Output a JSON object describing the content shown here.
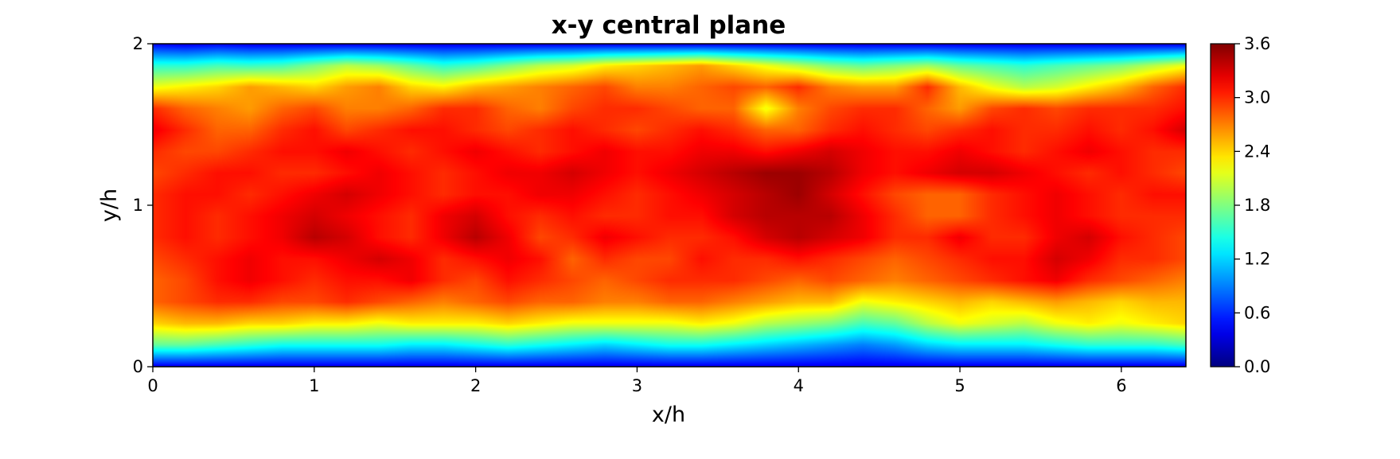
{
  "chart_data": {
    "type": "heatmap",
    "title": "x-y central plane",
    "xlabel": "x/h",
    "ylabel": "y/h",
    "xlim": [
      0,
      6.4
    ],
    "ylim": [
      0,
      2
    ],
    "x_ticks": [
      "0",
      "1",
      "2",
      "3",
      "4",
      "5",
      "6"
    ],
    "y_ticks": [
      "0",
      "1",
      "2"
    ],
    "colorbar": {
      "colormap": "jet",
      "range": [
        0.0,
        3.6
      ],
      "ticks": [
        "0.0",
        "0.6",
        "1.2",
        "1.8",
        "2.4",
        "3.0",
        "3.6"
      ]
    },
    "field_description_note": "",
    "values": [
      [
        0.45,
        0.4,
        0.45,
        0.4,
        0.4,
        0.4,
        0.4,
        0.4,
        0.4,
        0.4,
        0.4,
        0.4,
        0.4,
        0.4,
        0.4,
        0.4,
        0.4,
        0.4,
        0.4,
        0.4,
        0.4,
        0.4,
        0.4,
        0.4,
        0.4,
        0.4,
        0.4,
        0.4,
        0.4,
        0.4,
        0.4,
        0.4,
        0.4
      ],
      [
        1.5,
        1.5,
        1.6,
        1.55,
        1.6,
        1.8,
        2.0,
        1.9,
        1.7,
        1.5,
        1.6,
        1.8,
        2.0,
        2.1,
        2.3,
        2.4,
        2.5,
        2.6,
        2.4,
        2.2,
        2.0,
        1.8,
        1.7,
        1.8,
        1.9,
        1.7,
        1.6,
        1.5,
        1.6,
        1.7,
        1.8,
        2.0,
        2.2
      ],
      [
        2.2,
        2.3,
        2.4,
        2.6,
        2.5,
        2.4,
        2.6,
        2.7,
        2.4,
        2.3,
        2.5,
        2.6,
        2.7,
        2.8,
        2.9,
        2.7,
        2.7,
        2.8,
        2.9,
        2.8,
        3.0,
        2.7,
        2.6,
        2.6,
        3.0,
        2.5,
        2.2,
        2.0,
        2.1,
        2.3,
        2.5,
        2.8,
        3.0
      ],
      [
        3.0,
        2.8,
        2.7,
        2.6,
        2.8,
        2.9,
        2.7,
        2.7,
        2.8,
        3.0,
        3.0,
        2.8,
        2.7,
        2.9,
        3.0,
        3.0,
        2.9,
        2.8,
        2.8,
        2.2,
        2.7,
        2.9,
        3.0,
        3.0,
        2.8,
        2.6,
        2.9,
        3.0,
        2.9,
        3.0,
        3.0,
        3.0,
        3.1
      ],
      [
        3.2,
        3.0,
        2.8,
        2.8,
        3.0,
        3.1,
        2.9,
        3.0,
        3.1,
        3.1,
        3.0,
        2.9,
        3.0,
        3.1,
        3.0,
        2.9,
        3.0,
        3.1,
        3.0,
        2.8,
        2.8,
        3.0,
        3.1,
        3.0,
        2.9,
        3.0,
        3.1,
        3.0,
        3.0,
        3.1,
        3.0,
        3.1,
        3.3
      ],
      [
        3.0,
        2.9,
        2.9,
        3.0,
        3.1,
        3.1,
        3.2,
        3.1,
        3.0,
        3.1,
        3.2,
        3.1,
        3.0,
        3.1,
        3.2,
        3.1,
        3.1,
        3.2,
        3.2,
        3.1,
        3.2,
        3.3,
        3.2,
        3.1,
        3.1,
        3.2,
        3.1,
        3.0,
        3.1,
        3.2,
        3.1,
        3.0,
        3.0
      ],
      [
        2.9,
        3.0,
        3.1,
        3.1,
        3.0,
        3.0,
        3.1,
        3.2,
        3.1,
        3.0,
        3.1,
        3.2,
        3.2,
        3.3,
        3.2,
        3.1,
        3.2,
        3.3,
        3.4,
        3.5,
        3.5,
        3.4,
        3.2,
        3.1,
        3.2,
        3.3,
        3.3,
        3.2,
        3.1,
        3.0,
        3.1,
        3.0,
        2.9
      ],
      [
        3.0,
        3.1,
        3.1,
        3.0,
        3.1,
        3.2,
        3.3,
        3.2,
        3.1,
        3.0,
        3.1,
        3.1,
        3.2,
        3.2,
        3.1,
        3.0,
        3.1,
        3.2,
        3.3,
        3.4,
        3.5,
        3.3,
        3.1,
        2.9,
        2.8,
        2.8,
        3.0,
        3.1,
        3.2,
        3.1,
        3.0,
        3.1,
        3.1
      ],
      [
        3.0,
        3.1,
        3.0,
        3.1,
        3.2,
        3.3,
        3.2,
        3.1,
        3.0,
        3.2,
        3.3,
        3.1,
        3.0,
        3.1,
        3.0,
        3.0,
        3.1,
        3.1,
        3.3,
        3.4,
        3.4,
        3.4,
        3.2,
        3.0,
        2.8,
        2.8,
        3.0,
        3.1,
        3.2,
        3.1,
        3.0,
        3.0,
        3.0
      ],
      [
        3.0,
        3.1,
        3.0,
        3.1,
        3.2,
        3.4,
        3.3,
        3.1,
        3.0,
        3.2,
        3.4,
        3.2,
        2.9,
        3.0,
        3.2,
        3.1,
        3.0,
        3.0,
        3.1,
        3.3,
        3.4,
        3.3,
        3.2,
        3.0,
        3.0,
        3.2,
        3.0,
        3.0,
        3.2,
        3.3,
        3.1,
        3.0,
        2.9
      ],
      [
        2.9,
        3.0,
        3.1,
        3.2,
        3.1,
        3.1,
        3.2,
        3.3,
        3.2,
        3.0,
        3.1,
        3.2,
        3.1,
        2.8,
        3.0,
        2.9,
        2.9,
        3.1,
        3.0,
        3.0,
        3.1,
        3.0,
        2.9,
        2.8,
        2.9,
        3.0,
        3.1,
        3.1,
        3.3,
        3.2,
        3.0,
        3.0,
        2.9
      ],
      [
        2.8,
        2.9,
        3.1,
        3.2,
        3.1,
        3.0,
        3.1,
        3.1,
        3.2,
        3.0,
        2.9,
        3.1,
        3.0,
        2.9,
        2.8,
        2.9,
        3.0,
        3.0,
        3.0,
        2.9,
        2.8,
        2.9,
        2.8,
        2.7,
        2.8,
        2.9,
        3.0,
        3.1,
        3.2,
        3.0,
        2.9,
        2.8,
        2.7
      ],
      [
        2.8,
        2.9,
        3.0,
        3.0,
        2.9,
        2.9,
        3.0,
        2.9,
        2.8,
        2.7,
        2.8,
        2.9,
        2.8,
        2.8,
        2.7,
        2.7,
        2.8,
        2.8,
        2.7,
        2.6,
        2.5,
        2.5,
        2.2,
        2.3,
        2.4,
        2.5,
        2.4,
        2.5,
        2.6,
        2.5,
        2.4,
        2.5,
        2.5
      ],
      [
        2.4,
        2.5,
        2.5,
        2.4,
        2.4,
        2.3,
        2.3,
        2.2,
        2.3,
        2.3,
        2.3,
        2.4,
        2.3,
        2.2,
        2.2,
        2.2,
        2.2,
        2.3,
        2.2,
        2.0,
        1.9,
        1.8,
        1.6,
        1.7,
        2.0,
        2.2,
        2.1,
        2.0,
        2.2,
        2.3,
        2.2,
        2.3,
        2.4
      ],
      [
        1.7,
        1.7,
        1.6,
        1.5,
        1.4,
        1.4,
        1.4,
        1.4,
        1.3,
        1.3,
        1.4,
        1.5,
        1.4,
        1.3,
        1.2,
        1.3,
        1.4,
        1.4,
        1.3,
        1.2,
        1.1,
        1.0,
        0.9,
        1.0,
        1.2,
        1.3,
        1.3,
        1.3,
        1.4,
        1.5,
        1.5,
        1.5,
        1.6
      ],
      [
        0.4,
        0.4,
        0.4,
        0.4,
        0.4,
        0.4,
        0.4,
        0.4,
        0.4,
        0.4,
        0.4,
        0.4,
        0.4,
        0.4,
        0.4,
        0.4,
        0.4,
        0.4,
        0.4,
        0.4,
        0.4,
        0.4,
        0.4,
        0.4,
        0.4,
        0.4,
        0.4,
        0.4,
        0.4,
        0.4,
        0.4,
        0.4,
        0.4
      ]
    ]
  }
}
